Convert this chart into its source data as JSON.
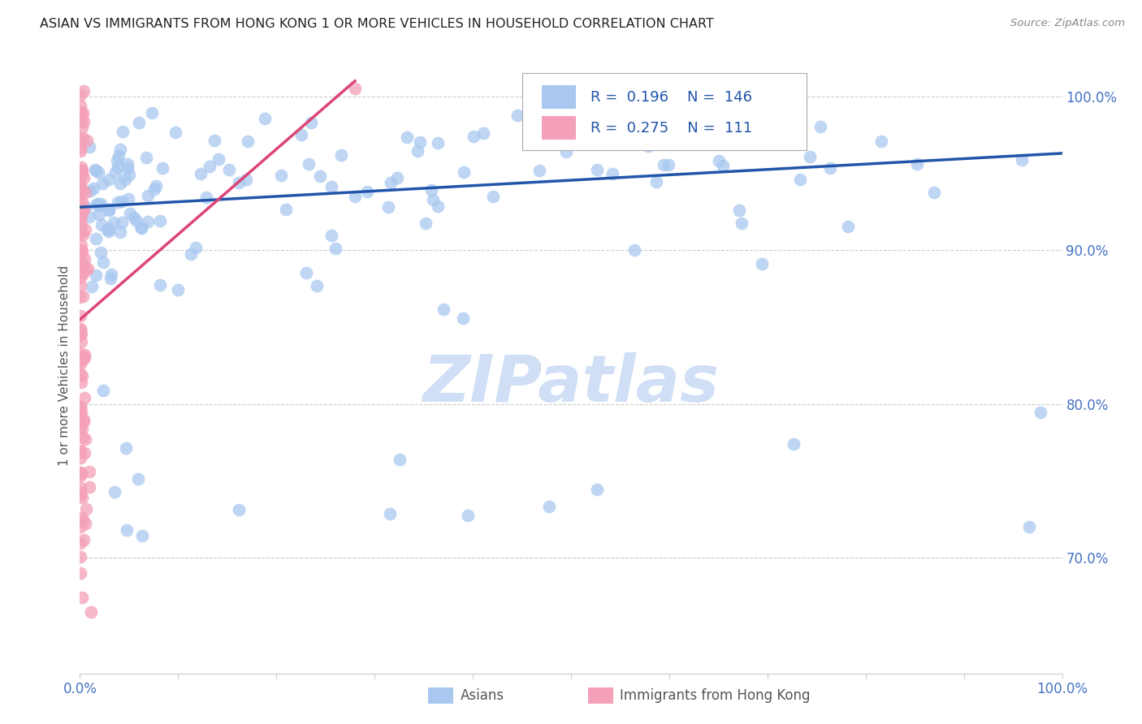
{
  "title": "ASIAN VS IMMIGRANTS FROM HONG KONG 1 OR MORE VEHICLES IN HOUSEHOLD CORRELATION CHART",
  "source": "Source: ZipAtlas.com",
  "ylabel": "1 or more Vehicles in Household",
  "xlim": [
    0.0,
    1.0
  ],
  "ylim": [
    0.625,
    1.025
  ],
  "blue_color": "#A8C8F0",
  "pink_color": "#F4A0B8",
  "blue_line_color": "#2255AA",
  "pink_line_color": "#DD4477",
  "title_color": "#333333",
  "axis_label_color": "#555555",
  "tick_color": "#4472C4",
  "grid_color": "#CCCCCC",
  "watermark_color": "#D0DFF5",
  "legend_R1": "0.196",
  "legend_N1": "146",
  "legend_R2": "0.275",
  "legend_N2": "111",
  "blue_trend_start": 0.928,
  "blue_trend_end": 0.963,
  "pink_trend_x0": 0.0,
  "pink_trend_y0": 0.855,
  "pink_trend_x1": 0.28,
  "pink_trend_y1": 1.01,
  "blue_seed": 42,
  "pink_seed": 77
}
